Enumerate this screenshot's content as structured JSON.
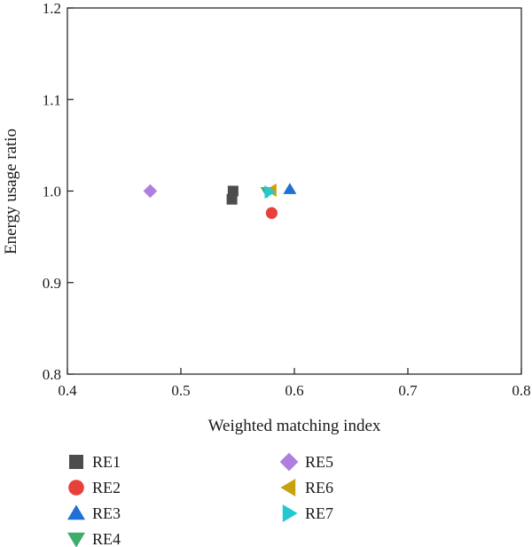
{
  "chart_data": {
    "type": "scatter",
    "title": "",
    "xlabel": "Weighted matching index",
    "ylabel": "Energy usage ratio",
    "xlim": [
      0.4,
      0.8
    ],
    "ylim": [
      0.8,
      1.2
    ],
    "xticks": [
      0.4,
      0.5,
      0.6,
      0.7,
      0.8
    ],
    "yticks": [
      0.8,
      0.9,
      1.0,
      1.1,
      1.2
    ],
    "xtick_labels": [
      "0.4",
      "0.5",
      "0.6",
      "0.7",
      "0.8"
    ],
    "ytick_labels": [
      "0.8",
      "0.9",
      "1.0",
      "1.1",
      "1.2"
    ],
    "grid": false,
    "legend_position": "below, two columns",
    "series": [
      {
        "name": "RE1",
        "marker": "square",
        "color": "#4d4d4d",
        "points": [
          [
            0.546,
            1.0
          ],
          [
            0.545,
            0.991
          ]
        ]
      },
      {
        "name": "RE2",
        "marker": "circle",
        "color": "#e8413c",
        "points": [
          [
            0.58,
            0.976
          ]
        ]
      },
      {
        "name": "RE3",
        "marker": "triangle-up",
        "color": "#1f6fd6",
        "points": [
          [
            0.596,
            1.002
          ]
        ]
      },
      {
        "name": "RE4",
        "marker": "triangle-down",
        "color": "#3dae6a",
        "points": [
          [
            0.576,
            0.999
          ]
        ]
      },
      {
        "name": "RE5",
        "marker": "diamond",
        "color": "#b07fdd",
        "points": [
          [
            0.473,
            1.0
          ]
        ]
      },
      {
        "name": "RE6",
        "marker": "triangle-left",
        "color": "#c8a10e",
        "points": [
          [
            0.58,
            1.001
          ]
        ]
      },
      {
        "name": "RE7",
        "marker": "triangle-right",
        "color": "#22c9d4",
        "points": [
          [
            0.578,
            0.999
          ]
        ]
      }
    ]
  }
}
